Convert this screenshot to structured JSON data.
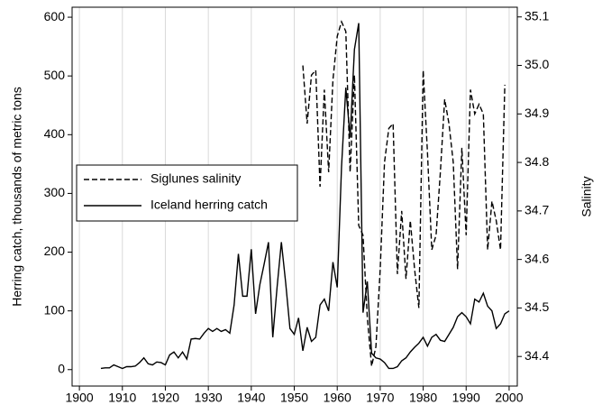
{
  "chart_data": {
    "type": "line",
    "y_label": "Herring catch, thousands of metric tons",
    "y2_label": "Salinity",
    "xlim": [
      1898.3,
      2001.9
    ],
    "xticks": [
      1900,
      1910,
      1920,
      1930,
      1940,
      1950,
      1960,
      1970,
      1980,
      1990,
      2000
    ],
    "ylim": [
      -28,
      617
    ],
    "yticks": [
      0,
      100,
      200,
      300,
      400,
      500,
      600
    ],
    "y2lim": [
      34.339,
      35.12
    ],
    "y2ticks": [
      34.4,
      34.5,
      34.6,
      34.7,
      34.8,
      34.9,
      {
        "value": 35,
        "label": "35.0"
      },
      35.1
    ],
    "grid": "x",
    "legend": "left",
    "series": [
      {
        "name": "Siglunes salinity",
        "color": "#000000",
        "style": "dashed",
        "axis": "y2",
        "x": [
          1952,
          1953,
          1954,
          1955,
          1956,
          1957,
          1958,
          1959,
          1960,
          1961,
          1962,
          1963,
          1964,
          1965,
          1966,
          1967,
          1968,
          1969,
          1970,
          1971,
          1972,
          1973,
          1974,
          1975,
          1976,
          1977,
          1978,
          1979,
          1980,
          1981,
          1982,
          1983,
          1984,
          1985,
          1986,
          1987,
          1988,
          1989,
          1990,
          1991,
          1992,
          1993,
          1994,
          1995,
          1996,
          1997,
          1998,
          1999
        ],
        "values": [
          35.0,
          34.88,
          34.98,
          34.99,
          34.75,
          34.95,
          34.78,
          34.97,
          35.06,
          35.09,
          35.07,
          34.78,
          34.98,
          34.67,
          34.65,
          34.48,
          34.38,
          34.42,
          34.58,
          34.8,
          34.87,
          34.88,
          34.57,
          34.7,
          34.56,
          34.68,
          34.58,
          34.5,
          34.99,
          34.82,
          34.62,
          34.65,
          34.78,
          34.93,
          34.88,
          34.8,
          34.58,
          34.83,
          34.65,
          34.95,
          34.9,
          34.92,
          34.9,
          34.62,
          34.72,
          34.68,
          34.62,
          34.96
        ]
      },
      {
        "name": "Iceland herring catch",
        "color": "#000000",
        "style": "solid",
        "axis": "y",
        "x": [
          1905,
          1906,
          1907,
          1908,
          1909,
          1910,
          1911,
          1912,
          1913,
          1914,
          1915,
          1916,
          1917,
          1918,
          1919,
          1920,
          1921,
          1922,
          1923,
          1924,
          1925,
          1926,
          1927,
          1928,
          1929,
          1930,
          1931,
          1932,
          1933,
          1934,
          1935,
          1936,
          1937,
          1938,
          1939,
          1940,
          1941,
          1942,
          1943,
          1944,
          1945,
          1946,
          1947,
          1948,
          1949,
          1950,
          1951,
          1952,
          1953,
          1954,
          1955,
          1956,
          1957,
          1958,
          1959,
          1960,
          1961,
          1962,
          1963,
          1964,
          1965,
          1966,
          1967,
          1968,
          1969,
          1970,
          1971,
          1972,
          1973,
          1974,
          1975,
          1976,
          1977,
          1978,
          1979,
          1980,
          1981,
          1982,
          1983,
          1984,
          1985,
          1986,
          1987,
          1988,
          1989,
          1990,
          1991,
          1992,
          1993,
          1994,
          1995,
          1996,
          1997,
          1998,
          1999,
          2000
        ],
        "values": [
          2,
          3,
          3,
          8,
          5,
          2,
          5,
          5,
          6,
          12,
          20,
          10,
          8,
          13,
          12,
          8,
          25,
          30,
          20,
          30,
          18,
          52,
          53,
          52,
          62,
          70,
          65,
          70,
          65,
          68,
          62,
          110,
          197,
          125,
          125,
          205,
          95,
          145,
          180,
          217,
          55,
          140,
          217,
          148,
          70,
          60,
          88,
          32,
          72,
          48,
          55,
          110,
          120,
          100,
          183,
          140,
          345,
          480,
          395,
          545,
          590,
          97,
          150,
          28,
          20,
          18,
          12,
          2,
          2,
          5,
          15,
          20,
          30,
          38,
          45,
          55,
          40,
          55,
          60,
          50,
          48,
          60,
          72,
          90,
          97,
          90,
          78,
          120,
          115,
          130,
          108,
          100,
          70,
          78,
          95,
          100
        ]
      }
    ]
  }
}
